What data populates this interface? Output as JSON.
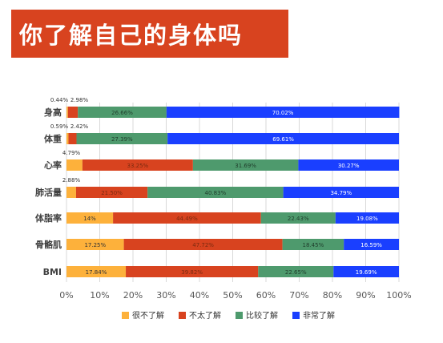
{
  "header": {
    "title": "你了解自己的身体吗"
  },
  "colors": {
    "title_bg": "#d8431f",
    "series": [
      "#fdb13b",
      "#d8431f",
      "#4e9a6d",
      "#1a3fff"
    ],
    "grid": "#d9d9d9",
    "axis_text": "#595959"
  },
  "chart_data": {
    "type": "bar",
    "orientation": "horizontal",
    "stacked": "percent",
    "title": "",
    "xlabel": "",
    "ylabel": "",
    "xlim": [
      0,
      100
    ],
    "x_ticks": [
      "0%",
      "10%",
      "20%",
      "30%",
      "40%",
      "50%",
      "60%",
      "70%",
      "80%",
      "90%",
      "100%"
    ],
    "grid": true,
    "legend_position": "bottom",
    "categories": [
      "身高",
      "体重",
      "心率",
      "肺活量",
      "体脂率",
      "骨骼肌",
      "BMI"
    ],
    "series": [
      {
        "name": "很不了解",
        "color": "#fdb13b",
        "values": [
          0.44,
          0.59,
          4.79,
          2.88,
          14,
          17.25,
          17.84
        ],
        "labels": [
          "0.44%",
          "0.59%",
          "4.79%",
          "2.88%",
          "14%",
          "17.25%",
          "17.84%"
        ]
      },
      {
        "name": "不太了解",
        "color": "#d8431f",
        "values": [
          2.98,
          2.42,
          33.25,
          21.5,
          44.49,
          47.72,
          39.82
        ],
        "labels": [
          "2.98%",
          "2.42%",
          "33.25%",
          "21.50%",
          "44.49%",
          "47.72%",
          "39.82%"
        ]
      },
      {
        "name": "比较了解",
        "color": "#4e9a6d",
        "values": [
          26.66,
          27.39,
          31.69,
          40.83,
          22.43,
          18.45,
          22.65
        ],
        "labels": [
          "26.66%",
          "27.39%",
          "31.69%",
          "40.83%",
          "22.43%",
          "18.45%",
          "22.65%"
        ]
      },
      {
        "name": "非常了解",
        "color": "#1a3fff",
        "values": [
          70.02,
          69.61,
          30.27,
          34.79,
          19.08,
          16.59,
          19.69
        ],
        "labels": [
          "70.02%",
          "69.61%",
          "30.27%",
          "34.79%",
          "19.08%",
          "16.59%",
          "19.69%"
        ]
      }
    ]
  }
}
